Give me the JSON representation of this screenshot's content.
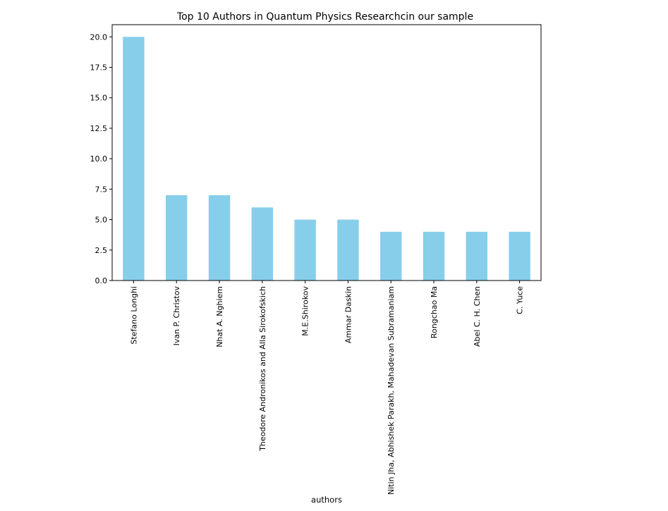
{
  "chart_data": {
    "type": "bar",
    "title": "Top 10 Authors in Quantum Physics Researchcin our sample",
    "xlabel": "authors",
    "ylabel": "",
    "categories": [
      "Stefano Longhi",
      "Ivan P. Christov",
      "Nhat A. Nghiem",
      "Theodore Andronikos and Alla Sirokofskich",
      "M.E.Shirokov",
      "Ammar Daskin",
      "Nitin Jha, Abhishek Parakh, Mahadevan Subramaniam",
      "Rongchao Ma",
      "Abel C. H. Chen",
      "C. Yuce"
    ],
    "values": [
      20,
      7,
      7,
      6,
      5,
      5,
      4,
      4,
      4,
      4
    ],
    "ylim": [
      0,
      21
    ],
    "yticks": [
      "0.0",
      "2.5",
      "5.0",
      "7.5",
      "10.0",
      "12.5",
      "15.0",
      "17.5",
      "20.0"
    ],
    "grid": false,
    "legend": "none",
    "colors": {
      "bar": "#87CEEB",
      "axis": "#000000"
    }
  }
}
